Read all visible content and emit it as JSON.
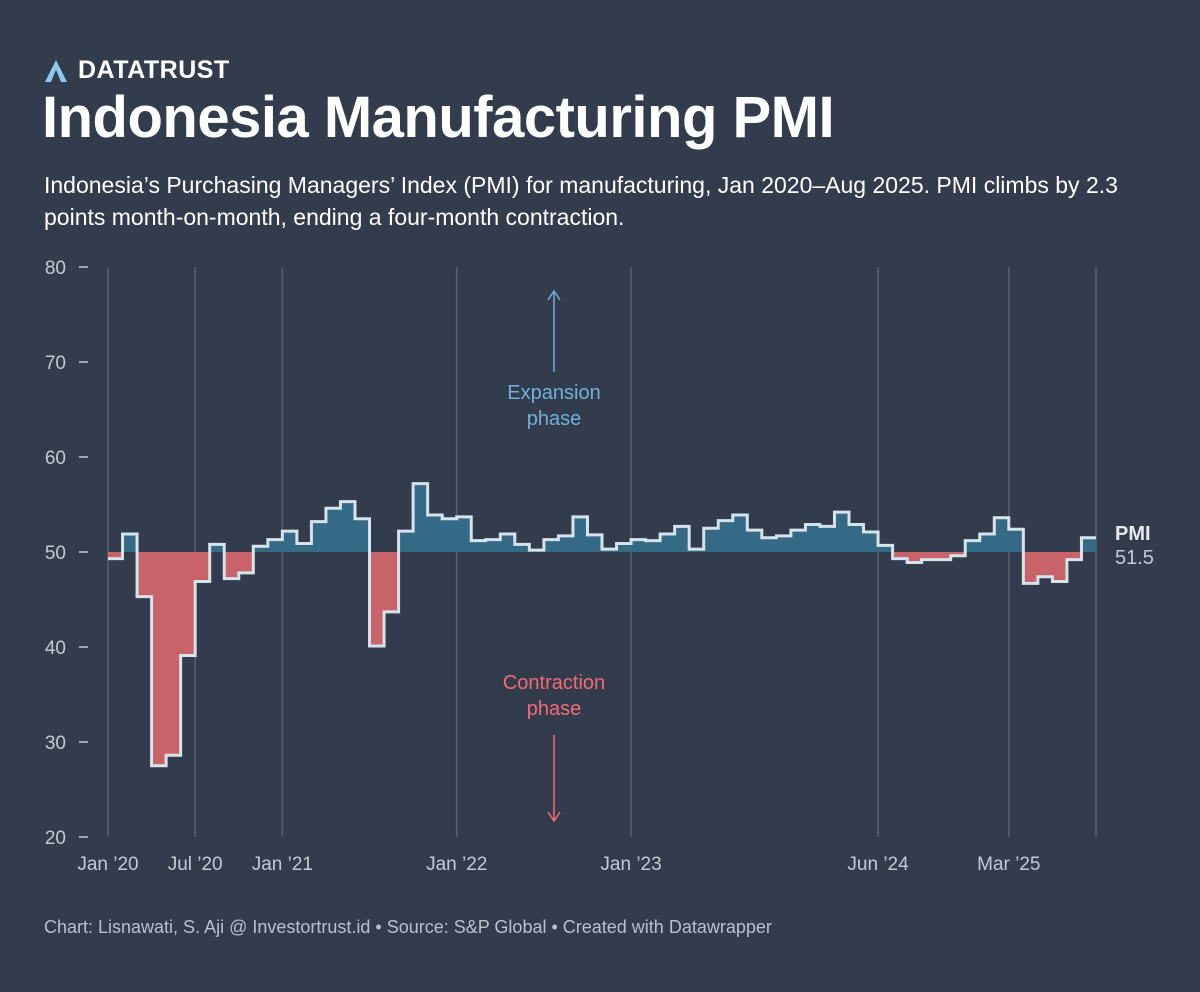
{
  "brand": {
    "name": "DATATRUST",
    "logo_icon": "triangle-a-logo-icon",
    "logo_color": "#8ec8ee"
  },
  "title": "Indonesia Manufacturing PMI",
  "subtitle": "Indonesia’s Purchasing Managers’ Index (PMI) for manufacturing, Jan 2020–Aug 2025. PMI climbs by 2.3 points month-on-month, ending a four-month contraction.",
  "footer": "Chart: Lisnawati, S. Aji @ Investortrust.id • Source: S&P Global • Created with Datawrapper",
  "colors": {
    "expansion_fill": "#346a85",
    "contraction_fill": "#c8636a",
    "line": "#d6e3ea",
    "expansion_text": "#6fb1d6",
    "contraction_text": "#f26b72",
    "grid": "#56606f",
    "axis_text": "#c4cad4"
  },
  "chart_data": {
    "type": "area",
    "title": "Indonesia Manufacturing PMI",
    "x_start": "Jan 2020",
    "x_end": "Aug 2025",
    "baseline": 50,
    "ylim": [
      20,
      80
    ],
    "yticks": [
      20,
      30,
      40,
      50,
      60,
      70,
      80
    ],
    "xticks": [
      {
        "label": "Jan ’20",
        "index": 0
      },
      {
        "label": "Jul ’20",
        "index": 6
      },
      {
        "label": "Jan ’21",
        "index": 12
      },
      {
        "label": "Jan ’22",
        "index": 24
      },
      {
        "label": "Jan ’23",
        "index": 36
      },
      {
        "label": "Jun ’24",
        "index": 53
      },
      {
        "label": "Mar ’25",
        "index": 62
      }
    ],
    "series": [
      {
        "name": "PMI",
        "values": [
          49.3,
          51.9,
          45.3,
          27.5,
          28.6,
          39.1,
          46.9,
          50.8,
          47.2,
          47.8,
          50.6,
          51.3,
          52.2,
          50.9,
          53.2,
          54.6,
          55.3,
          53.5,
          40.1,
          43.7,
          52.2,
          57.2,
          53.9,
          53.5,
          53.7,
          51.2,
          51.3,
          51.9,
          50.8,
          50.2,
          51.3,
          51.7,
          53.7,
          51.8,
          50.3,
          50.9,
          51.3,
          51.2,
          51.9,
          52.7,
          50.3,
          52.5,
          53.3,
          53.9,
          52.3,
          51.5,
          51.7,
          52.3,
          52.9,
          52.7,
          54.2,
          52.9,
          52.1,
          50.7,
          49.3,
          48.9,
          49.2,
          49.2,
          49.6,
          51.2,
          51.9,
          53.6,
          52.4,
          46.7,
          47.4,
          46.9,
          49.2,
          51.5
        ],
        "last_label": "PMI",
        "last_value": "51.5"
      }
    ],
    "annotations": [
      {
        "text": "Expansion\nphase",
        "direction": "up"
      },
      {
        "text": "Contraction\nphase",
        "direction": "down"
      }
    ]
  }
}
